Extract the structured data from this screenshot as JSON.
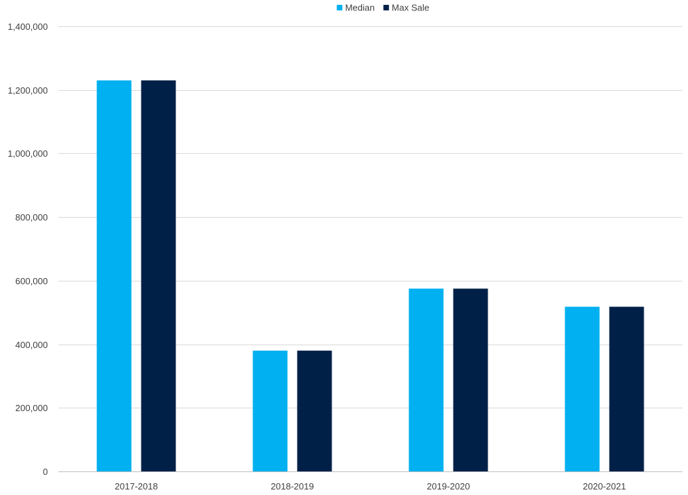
{
  "chart_data": {
    "type": "bar",
    "categories": [
      "2017-2018",
      "2018-2019",
      "2019-2020",
      "2020-2021"
    ],
    "series": [
      {
        "name": "Median",
        "values": [
          1230000,
          380000,
          575000,
          518000
        ],
        "color": "#00B0F0"
      },
      {
        "name": "Max Sale",
        "values": [
          1230000,
          380000,
          575000,
          518000
        ],
        "color": "#002048"
      }
    ],
    "ylim": [
      0,
      1400000
    ],
    "y_ticks": [
      0,
      200000,
      400000,
      600000,
      800000,
      1000000,
      1200000,
      1400000
    ],
    "y_tick_labels": [
      "0",
      "200,000",
      "400,000",
      "600,000",
      "800,000",
      "1,000,000",
      "1,200,000",
      "1,400,000"
    ],
    "grid": true,
    "legend_position": "top-center"
  }
}
